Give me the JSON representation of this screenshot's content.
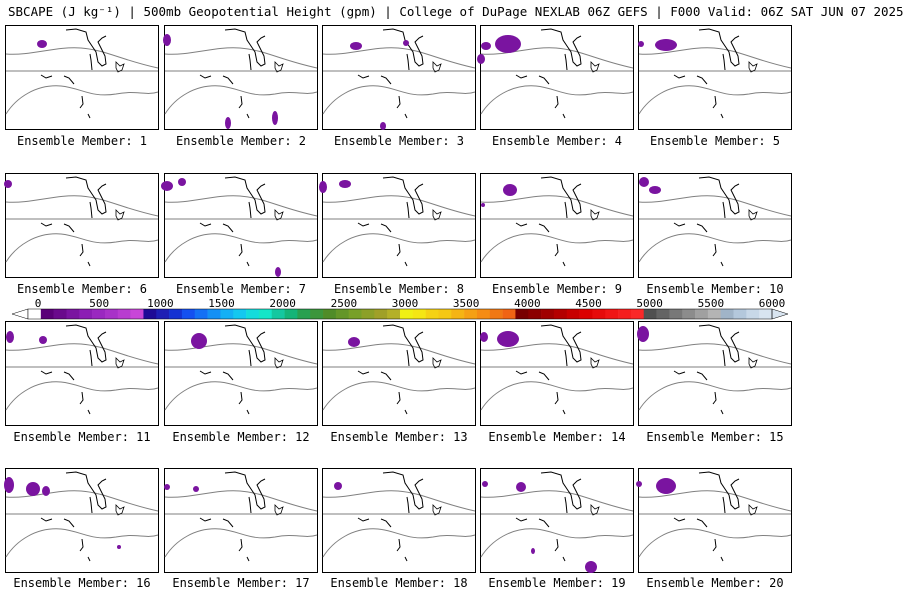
{
  "title": "SBCAPE (J kg⁻¹) | 500mb Geopotential Height (gpm) | College of DuPage NEXLAB 06Z GEFS | F000 Valid: 06Z SAT JUN 07 2025",
  "panels": [
    {
      "label": "Ensemble Member: 1"
    },
    {
      "label": "Ensemble Member: 2"
    },
    {
      "label": "Ensemble Member: 3"
    },
    {
      "label": "Ensemble Member: 4"
    },
    {
      "label": "Ensemble Member: 5"
    },
    {
      "label": "Ensemble Member: 6"
    },
    {
      "label": "Ensemble Member: 7"
    },
    {
      "label": "Ensemble Member: 8"
    },
    {
      "label": "Ensemble Member: 9"
    },
    {
      "label": "Ensemble Member: 10"
    },
    {
      "label": "Ensemble Member: 11"
    },
    {
      "label": "Ensemble Member: 12"
    },
    {
      "label": "Ensemble Member: 13"
    },
    {
      "label": "Ensemble Member: 14"
    },
    {
      "label": "Ensemble Member: 15"
    },
    {
      "label": "Ensemble Member: 16"
    },
    {
      "label": "Ensemble Member: 17"
    },
    {
      "label": "Ensemble Member: 18"
    },
    {
      "label": "Ensemble Member: 19"
    },
    {
      "label": "Ensemble Member: 20"
    }
  ],
  "colorbar": {
    "labels": [
      "0",
      "500",
      "1000",
      "1500",
      "2000",
      "2500",
      "3000",
      "3500",
      "4000",
      "4500",
      "5000",
      "5500",
      "6000"
    ],
    "colors": [
      "#ffffff",
      "#5a0078",
      "#6a0a8c",
      "#7a14a0",
      "#8c1eb4",
      "#9a28c0",
      "#a832c8",
      "#b83cd0",
      "#c846d8",
      "#1e0a96",
      "#1e1eb4",
      "#1432d2",
      "#1450f0",
      "#1470f5",
      "#1490f5",
      "#14b0f5",
      "#14c8f0",
      "#14dcdc",
      "#14e6c8",
      "#14c8a0",
      "#14b478",
      "#28a050",
      "#3c963c",
      "#508c28",
      "#649628",
      "#78a028",
      "#8ca028",
      "#a0a028",
      "#b4b028",
      "#f0f014",
      "#f5e614",
      "#f5d214",
      "#f5c814",
      "#f5b414",
      "#f5a014",
      "#f58c14",
      "#f07814",
      "#f06414",
      "#780000",
      "#8c0000",
      "#a00000",
      "#b40000",
      "#c80000",
      "#dc0000",
      "#e60a0a",
      "#f01414",
      "#f51e1e",
      "#fa2828",
      "#505050",
      "#646464",
      "#787878",
      "#8c8c8c",
      "#a0a0a0",
      "#b4b4b4",
      "#a0b4c8",
      "#b4c8dc",
      "#c8d8e8",
      "#d8e4f0"
    ]
  },
  "colors": {
    "cape_purple": "#7a14a0",
    "map_line": "#808080",
    "coast": "#000000"
  }
}
